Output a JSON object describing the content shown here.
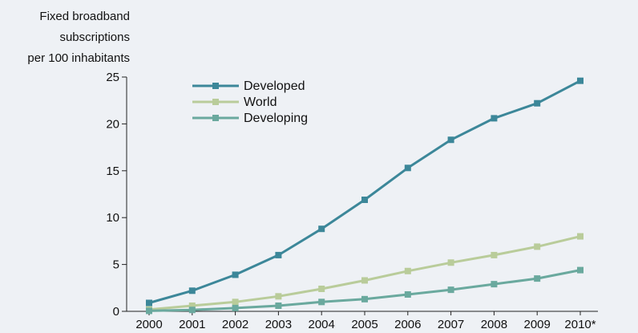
{
  "chart_data": {
    "type": "line",
    "ylabel_lines": [
      "Fixed broadband",
      "subscriptions",
      "per 100 inhabitants"
    ],
    "categories": [
      "2000",
      "2001",
      "2002",
      "2003",
      "2004",
      "2005",
      "2006",
      "2007",
      "2008",
      "2009",
      "2010*"
    ],
    "ylim": [
      0,
      25
    ],
    "yticks": [
      0,
      5,
      10,
      15,
      20,
      25
    ],
    "grid": false,
    "legend_position": "top-left",
    "series": [
      {
        "name": "Developed",
        "color": "#3c8799",
        "values": [
          0.9,
          2.2,
          3.9,
          6.0,
          8.8,
          11.9,
          15.3,
          18.3,
          20.6,
          22.2,
          24.6
        ]
      },
      {
        "name": "World",
        "color": "#b9cc9a",
        "values": [
          0.2,
          0.6,
          1.0,
          1.6,
          2.4,
          3.3,
          4.3,
          5.2,
          6.0,
          6.9,
          8.0
        ]
      },
      {
        "name": "Developing",
        "color": "#6aa99e",
        "values": [
          0.05,
          0.15,
          0.35,
          0.6,
          1.0,
          1.3,
          1.8,
          2.3,
          2.9,
          3.5,
          4.4
        ]
      }
    ]
  }
}
